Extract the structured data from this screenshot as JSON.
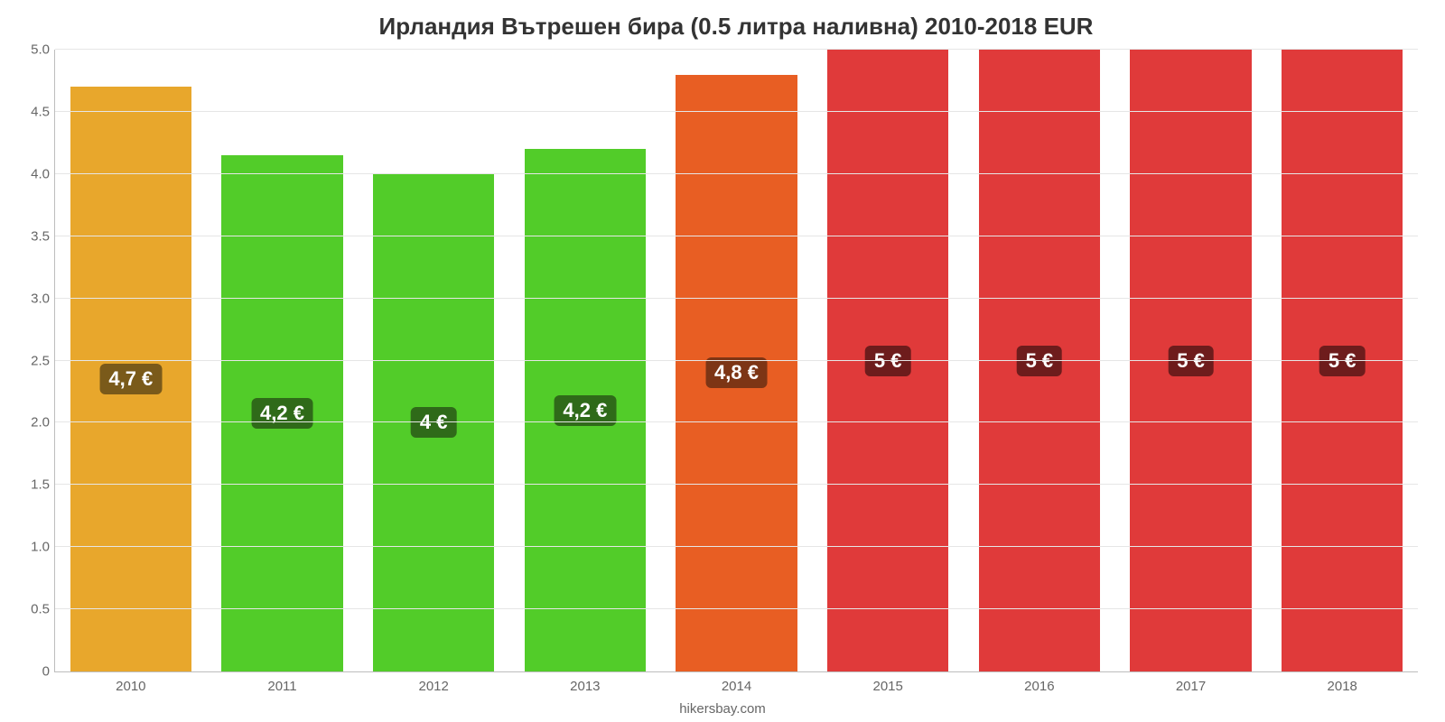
{
  "chart": {
    "type": "bar",
    "title": "Ирландия Вътрешен бира (0.5 литра наливна) 2010-2018 EUR",
    "title_fontsize": 26,
    "title_color": "#333333",
    "attribution": "hikersbay.com",
    "attribution_fontsize": 15,
    "attribution_color": "#666666",
    "background_color": "#ffffff",
    "axis_color": "#bdbdbd",
    "grid_color": "#e6e6e6",
    "ylim": [
      0,
      5.0
    ],
    "ytick_step": 0.5,
    "yticks": [
      "0",
      "0.5",
      "1.0",
      "1.5",
      "2.0",
      "2.5",
      "3.0",
      "3.5",
      "4.0",
      "4.5",
      "5.0"
    ],
    "ytick_fontsize": 15,
    "xtick_fontsize": 15,
    "tick_color": "#666666",
    "categories": [
      "2010",
      "2011",
      "2012",
      "2013",
      "2014",
      "2015",
      "2016",
      "2017",
      "2018"
    ],
    "values": [
      4.7,
      4.15,
      4.0,
      4.2,
      4.8,
      5.0,
      5.0,
      5.0,
      5.0
    ],
    "value_labels": [
      "4,7 €",
      "4,2 €",
      "4 €",
      "4,2 €",
      "4,8 €",
      "5 €",
      "5 €",
      "5 €",
      "5 €"
    ],
    "bar_colors": [
      "#e8a72c",
      "#52cc29",
      "#52cc29",
      "#52cc29",
      "#e85e23",
      "#e03a3a",
      "#e03a3a",
      "#e03a3a",
      "#e03a3a"
    ],
    "label_bg_colors": [
      "#7a5a1a",
      "#2f6a19",
      "#2f6a19",
      "#2f6a19",
      "#7d3515",
      "#6e1c1c",
      "#6e1c1c",
      "#6e1c1c",
      "#6e1c1c"
    ],
    "bar_width_pct": 80,
    "bar_label_fontsize": 22,
    "bar_label_color": "#ffffff"
  }
}
